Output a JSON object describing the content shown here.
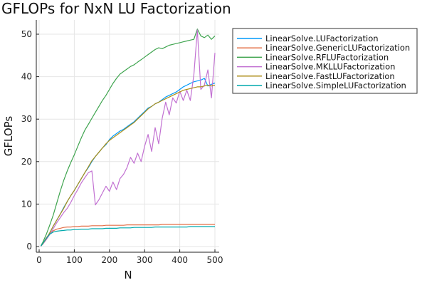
{
  "chart_data": {
    "type": "line",
    "title": "GFLOPs for NxN LU Factorization",
    "xlabel": "N",
    "ylabel": "GFLOPs",
    "xlim": [
      0,
      500
    ],
    "ylim": [
      0,
      50
    ],
    "xticks": [
      0,
      100,
      200,
      300,
      400,
      500
    ],
    "yticks": [
      0,
      10,
      20,
      30,
      40,
      50
    ],
    "grid": true,
    "legend_position": "outside-right",
    "x": [
      5,
      10,
      20,
      30,
      40,
      50,
      60,
      70,
      80,
      90,
      100,
      110,
      120,
      130,
      140,
      150,
      160,
      170,
      180,
      190,
      200,
      210,
      220,
      230,
      240,
      250,
      260,
      270,
      280,
      290,
      300,
      310,
      320,
      330,
      340,
      350,
      360,
      370,
      380,
      390,
      400,
      410,
      420,
      430,
      440,
      450,
      460,
      470,
      480,
      490,
      500
    ],
    "series": [
      {
        "name": "LinearSolve.LUFactorization",
        "color": "#009AFA",
        "values": [
          0.1,
          0.6,
          1.8,
          3.2,
          4.8,
          6.2,
          7.6,
          9.2,
          10.6,
          12.0,
          13.2,
          14.6,
          16.0,
          17.4,
          18.6,
          20.0,
          21.2,
          22.2,
          23.2,
          24.0,
          25.2,
          26.0,
          26.6,
          27.2,
          27.6,
          28.2,
          28.8,
          29.4,
          30.2,
          31.0,
          31.8,
          32.6,
          33.0,
          33.6,
          34.0,
          34.6,
          35.2,
          35.6,
          36.0,
          36.4,
          37.0,
          37.6,
          38.0,
          38.4,
          38.8,
          39.0,
          39.2,
          39.6,
          37.8,
          38.2,
          38.5
        ]
      },
      {
        "name": "LinearSolve.GenericLUFactorization",
        "color": "#E36F47",
        "values": [
          0.1,
          0.7,
          2.0,
          3.1,
          3.7,
          4.1,
          4.3,
          4.5,
          4.6,
          4.6,
          4.7,
          4.7,
          4.8,
          4.8,
          4.8,
          4.9,
          4.9,
          4.9,
          4.9,
          5.0,
          5.0,
          5.0,
          5.0,
          5.0,
          5.0,
          5.1,
          5.1,
          5.1,
          5.1,
          5.1,
          5.1,
          5.1,
          5.1,
          5.1,
          5.1,
          5.2,
          5.2,
          5.2,
          5.2,
          5.2,
          5.2,
          5.2,
          5.2,
          5.2,
          5.2,
          5.2,
          5.2,
          5.2,
          5.2,
          5.2,
          5.2
        ]
      },
      {
        "name": "LinearSolve.RFLUFactorization",
        "color": "#3EA44E",
        "values": [
          0.2,
          0.9,
          2.8,
          5.0,
          7.4,
          10.2,
          13.0,
          15.6,
          17.8,
          19.8,
          21.6,
          23.6,
          25.6,
          27.4,
          28.8,
          30.2,
          31.6,
          33.0,
          34.4,
          35.6,
          37.0,
          38.4,
          39.6,
          40.6,
          41.2,
          41.8,
          42.4,
          42.8,
          43.4,
          44.0,
          44.6,
          45.2,
          45.8,
          46.4,
          46.8,
          46.6,
          47.0,
          47.4,
          47.6,
          47.8,
          48.0,
          48.2,
          48.4,
          48.6,
          48.8,
          51.2,
          49.6,
          49.2,
          49.8,
          48.8,
          49.6
        ]
      },
      {
        "name": "LinearSolve.MKLLUFactorization",
        "color": "#C271D2",
        "values": [
          0.1,
          0.5,
          1.6,
          2.8,
          4.2,
          5.6,
          6.8,
          8.0,
          9.0,
          10.4,
          12.0,
          13.4,
          15.0,
          16.2,
          17.4,
          17.8,
          9.8,
          11.0,
          12.6,
          14.2,
          13.0,
          15.2,
          13.4,
          16.0,
          17.0,
          18.6,
          21.0,
          19.6,
          22.0,
          20.0,
          23.6,
          26.4,
          22.4,
          28.0,
          24.2,
          30.2,
          34.0,
          31.0,
          35.0,
          33.8,
          36.6,
          34.4,
          36.8,
          34.4,
          40.4,
          51.0,
          37.0,
          38.0,
          41.6,
          35.0,
          45.6
        ]
      },
      {
        "name": "LinearSolve.FastLUFactorization",
        "color": "#AC8E18",
        "values": [
          0.1,
          0.6,
          1.8,
          3.2,
          4.8,
          6.2,
          7.6,
          9.0,
          10.6,
          12.0,
          13.2,
          14.6,
          16.0,
          17.4,
          18.8,
          20.2,
          21.2,
          22.2,
          23.2,
          24.2,
          25.0,
          25.6,
          26.2,
          26.8,
          27.4,
          28.0,
          28.6,
          29.2,
          30.0,
          30.8,
          31.6,
          32.4,
          33.0,
          33.6,
          34.0,
          34.4,
          34.8,
          35.2,
          35.6,
          36.0,
          36.4,
          36.8,
          37.0,
          37.2,
          37.4,
          37.6,
          37.6,
          37.8,
          38.0,
          37.8,
          38.0
        ]
      },
      {
        "name": "LinearSolve.SimpleLUFactorization",
        "color": "#00A9AD",
        "values": [
          0.1,
          0.7,
          1.9,
          2.9,
          3.4,
          3.6,
          3.7,
          3.8,
          3.9,
          3.9,
          4.0,
          4.0,
          4.1,
          4.1,
          4.1,
          4.2,
          4.2,
          4.2,
          4.2,
          4.3,
          4.3,
          4.3,
          4.3,
          4.4,
          4.4,
          4.4,
          4.4,
          4.5,
          4.5,
          4.5,
          4.5,
          4.5,
          4.5,
          4.6,
          4.6,
          4.6,
          4.6,
          4.6,
          4.6,
          4.6,
          4.6,
          4.6,
          4.6,
          4.7,
          4.7,
          4.7,
          4.7,
          4.7,
          4.7,
          4.7,
          4.7
        ]
      }
    ]
  }
}
